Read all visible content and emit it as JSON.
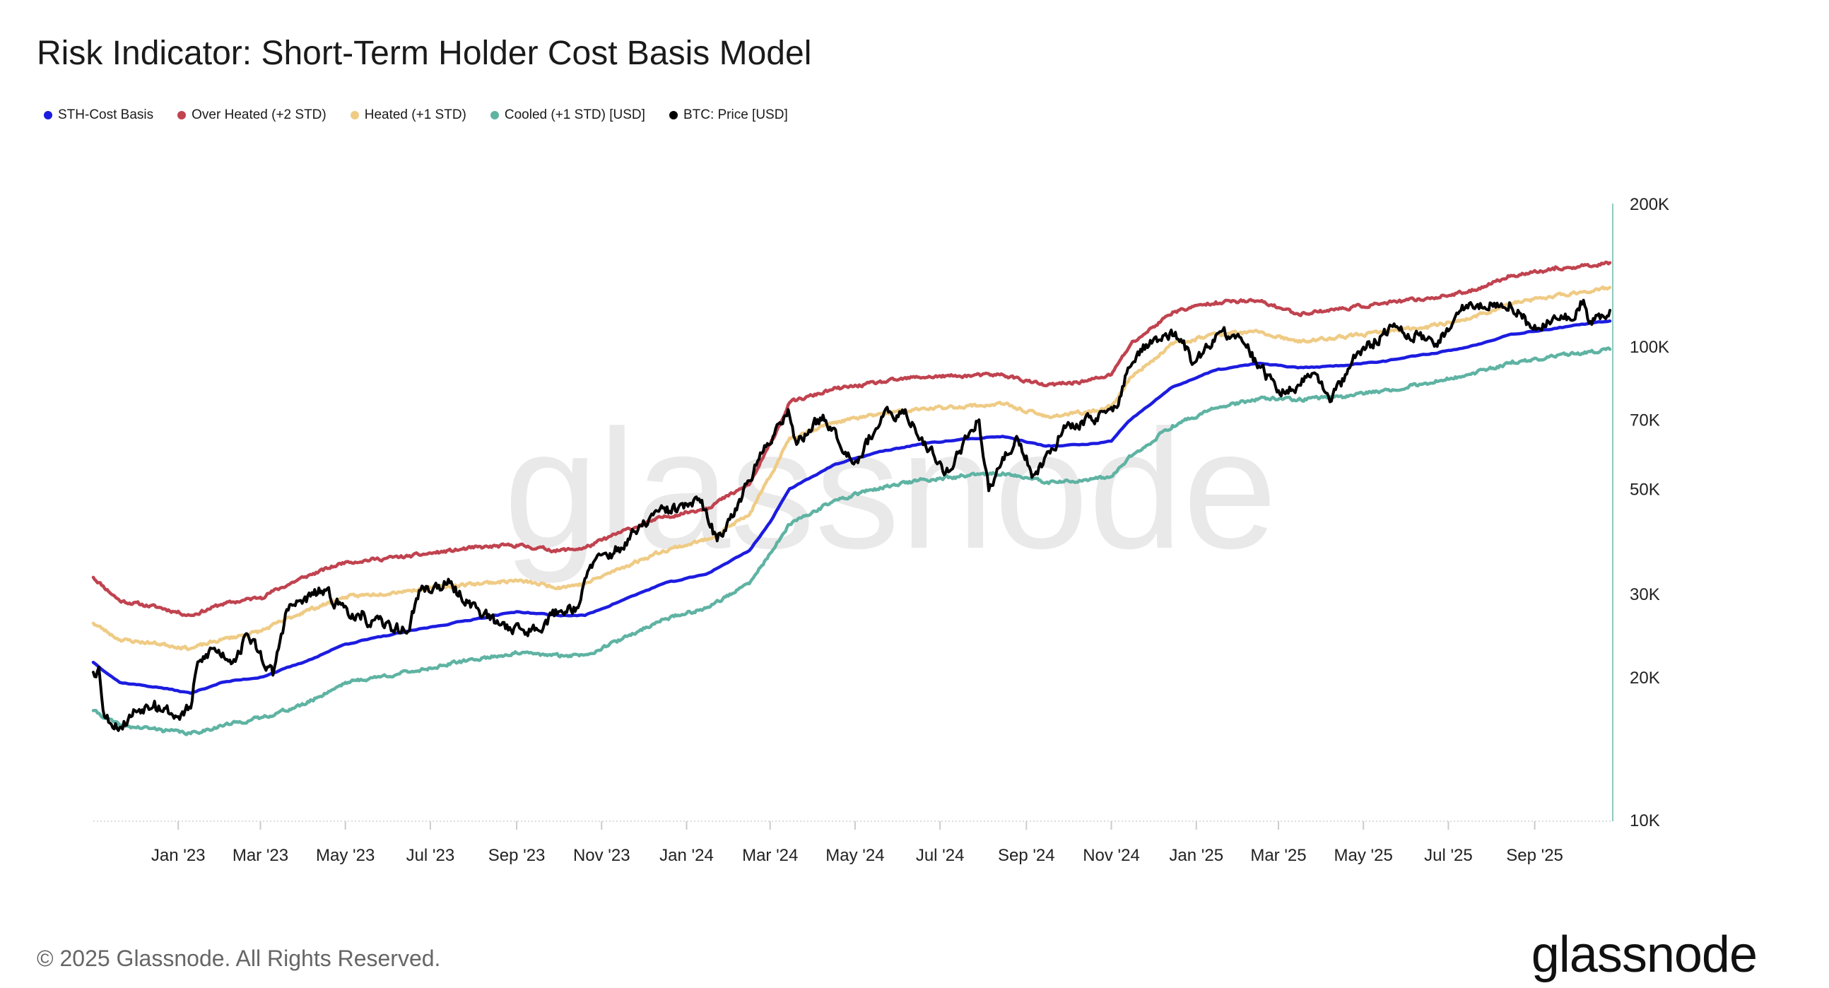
{
  "header": {
    "title": "Risk Indicator: Short-Term Holder Cost Basis Model"
  },
  "legend": [
    {
      "label": "STH-Cost Basis",
      "color": "#1c1ce0"
    },
    {
      "label": "Over Heated (+2 STD)",
      "color": "#c0434f"
    },
    {
      "label": "Heated (+1 STD)",
      "color": "#efcb85"
    },
    {
      "label": "Cooled (+1 STD) [USD]",
      "color": "#5fb3a3"
    },
    {
      "label": "BTC: Price [USD]",
      "color": "#000000"
    }
  ],
  "footer": {
    "copyright": "© 2025 Glassnode. All Rights Reserved.",
    "brand": "glassnode"
  },
  "watermark": "glassnode",
  "chart_data": {
    "type": "line",
    "x_axis": {
      "type": "date",
      "range": [
        "2022-11-01",
        "2025-10-25"
      ],
      "tick_labels": [
        "Jan '23",
        "Mar '23",
        "May '23",
        "Jul '23",
        "Sep '23",
        "Nov '23",
        "Jan '24",
        "Mar '24",
        "May '24",
        "Jul '24",
        "Sep '24",
        "Nov '24",
        "Jan '25",
        "Mar '25",
        "May '25",
        "Jul '25",
        "Sep '25"
      ],
      "tick_dates": [
        "2023-01-01",
        "2023-03-01",
        "2023-05-01",
        "2023-07-01",
        "2023-09-01",
        "2023-11-01",
        "2024-01-01",
        "2024-03-01",
        "2024-05-01",
        "2024-07-01",
        "2024-09-01",
        "2024-11-01",
        "2025-01-01",
        "2025-03-01",
        "2025-05-01",
        "2025-07-01",
        "2025-09-01"
      ]
    },
    "y_axis": {
      "scale": "log",
      "range": [
        10000,
        200000
      ],
      "position": "right",
      "ticks": [
        10000,
        20000,
        30000,
        50000,
        70000,
        100000,
        200000
      ],
      "tick_labels": [
        "10K",
        "20K",
        "30K",
        "50K",
        "70K",
        "100K",
        "200K"
      ]
    },
    "series": [
      {
        "name": "Over Heated (+2 STD)",
        "color": "#c0434f",
        "points": [
          [
            "2022-11-01",
            32500
          ],
          [
            "2022-11-20",
            29000
          ],
          [
            "2022-12-20",
            28000
          ],
          [
            "2023-01-10",
            27000
          ],
          [
            "2023-02-01",
            28500
          ],
          [
            "2023-03-01",
            29500
          ],
          [
            "2023-04-01",
            32500
          ],
          [
            "2023-05-01",
            35000
          ],
          [
            "2023-06-15",
            36000
          ],
          [
            "2023-08-01",
            37500
          ],
          [
            "2023-09-01",
            38000
          ],
          [
            "2023-10-01",
            37000
          ],
          [
            "2023-10-20",
            37500
          ],
          [
            "2023-11-15",
            40500
          ],
          [
            "2023-12-15",
            43500
          ],
          [
            "2024-01-15",
            45500
          ],
          [
            "2024-02-15",
            51000
          ],
          [
            "2024-03-01",
            62000
          ],
          [
            "2024-03-15",
            76000
          ],
          [
            "2024-04-15",
            81000
          ],
          [
            "2024-05-15",
            83500
          ],
          [
            "2024-06-15",
            86000
          ],
          [
            "2024-07-15",
            86500
          ],
          [
            "2024-08-15",
            87000
          ],
          [
            "2024-09-15",
            82500
          ],
          [
            "2024-10-15",
            84500
          ],
          [
            "2024-11-01",
            87000
          ],
          [
            "2024-11-15",
            101000
          ],
          [
            "2024-12-15",
            118000
          ],
          [
            "2025-01-15",
            124000
          ],
          [
            "2025-02-15",
            124500
          ],
          [
            "2025-03-15",
            117000
          ],
          [
            "2025-04-15",
            120000
          ],
          [
            "2025-05-15",
            123000
          ],
          [
            "2025-06-15",
            126000
          ],
          [
            "2025-07-15",
            130000
          ],
          [
            "2025-08-15",
            141000
          ],
          [
            "2025-09-15",
            145000
          ],
          [
            "2025-10-25",
            150000
          ]
        ]
      },
      {
        "name": "Heated (+1 STD)",
        "color": "#efcb85",
        "points": [
          [
            "2022-11-01",
            26000
          ],
          [
            "2022-11-20",
            24000
          ],
          [
            "2022-12-20",
            23500
          ],
          [
            "2023-01-10",
            23000
          ],
          [
            "2023-02-01",
            24000
          ],
          [
            "2023-03-01",
            25000
          ],
          [
            "2023-04-01",
            27500
          ],
          [
            "2023-05-01",
            29500
          ],
          [
            "2023-06-15",
            30500
          ],
          [
            "2023-08-01",
            31500
          ],
          [
            "2023-09-01",
            32000
          ],
          [
            "2023-10-01",
            31000
          ],
          [
            "2023-10-20",
            31500
          ],
          [
            "2023-11-15",
            34000
          ],
          [
            "2023-12-15",
            37000
          ],
          [
            "2024-01-15",
            39000
          ],
          [
            "2024-02-15",
            44000
          ],
          [
            "2024-03-01",
            53000
          ],
          [
            "2024-03-15",
            64000
          ],
          [
            "2024-04-15",
            69000
          ],
          [
            "2024-05-15",
            71500
          ],
          [
            "2024-06-15",
            73500
          ],
          [
            "2024-07-15",
            74500
          ],
          [
            "2024-08-15",
            75500
          ],
          [
            "2024-09-15",
            71000
          ],
          [
            "2024-10-15",
            72500
          ],
          [
            "2024-11-01",
            74500
          ],
          [
            "2024-11-15",
            86000
          ],
          [
            "2024-12-15",
            101000
          ],
          [
            "2025-01-15",
            106000
          ],
          [
            "2025-02-15",
            107000
          ],
          [
            "2025-03-15",
            102000
          ],
          [
            "2025-04-15",
            104500
          ],
          [
            "2025-05-15",
            107000
          ],
          [
            "2025-06-15",
            110000
          ],
          [
            "2025-07-15",
            114000
          ],
          [
            "2025-08-15",
            123000
          ],
          [
            "2025-09-15",
            127500
          ],
          [
            "2025-10-25",
            133000
          ]
        ]
      },
      {
        "name": "STH-Cost Basis",
        "color": "#1c1ce0",
        "points": [
          [
            "2022-11-01",
            21500
          ],
          [
            "2022-11-20",
            19500
          ],
          [
            "2022-12-20",
            19000
          ],
          [
            "2023-01-10",
            18500
          ],
          [
            "2023-02-01",
            19500
          ],
          [
            "2023-03-01",
            20000
          ],
          [
            "2023-04-01",
            21500
          ],
          [
            "2023-05-01",
            23500
          ],
          [
            "2023-06-15",
            25000
          ],
          [
            "2023-08-01",
            26500
          ],
          [
            "2023-09-01",
            27500
          ],
          [
            "2023-10-01",
            27000
          ],
          [
            "2023-10-20",
            27000
          ],
          [
            "2023-11-15",
            29000
          ],
          [
            "2023-12-15",
            31500
          ],
          [
            "2024-01-15",
            33000
          ],
          [
            "2024-02-15",
            37000
          ],
          [
            "2024-03-01",
            42500
          ],
          [
            "2024-03-15",
            50000
          ],
          [
            "2024-04-15",
            56000
          ],
          [
            "2024-05-15",
            59500
          ],
          [
            "2024-06-15",
            62000
          ],
          [
            "2024-07-15",
            63500
          ],
          [
            "2024-08-15",
            64500
          ],
          [
            "2024-09-15",
            61500
          ],
          [
            "2024-10-15",
            62000
          ],
          [
            "2024-11-01",
            63000
          ],
          [
            "2024-11-15",
            70000
          ],
          [
            "2024-12-15",
            82000
          ],
          [
            "2025-01-15",
            89000
          ],
          [
            "2025-02-15",
            92000
          ],
          [
            "2025-03-15",
            90000
          ],
          [
            "2025-04-15",
            91000
          ],
          [
            "2025-05-15",
            93000
          ],
          [
            "2025-06-15",
            96000
          ],
          [
            "2025-07-15",
            99500
          ],
          [
            "2025-08-15",
            106000
          ],
          [
            "2025-09-15",
            109000
          ],
          [
            "2025-10-25",
            113000
          ]
        ]
      },
      {
        "name": "Cooled (+1 STD) [USD]",
        "color": "#5fb3a3",
        "points": [
          [
            "2022-11-01",
            17000
          ],
          [
            "2022-11-20",
            15800
          ],
          [
            "2022-12-20",
            15500
          ],
          [
            "2023-01-10",
            15200
          ],
          [
            "2023-02-01",
            15800
          ],
          [
            "2023-03-01",
            16400
          ],
          [
            "2023-04-01",
            17500
          ],
          [
            "2023-05-01",
            19500
          ],
          [
            "2023-06-15",
            20500
          ],
          [
            "2023-08-01",
            21800
          ],
          [
            "2023-09-01",
            22500
          ],
          [
            "2023-10-01",
            22200
          ],
          [
            "2023-10-20",
            22300
          ],
          [
            "2023-11-15",
            24000
          ],
          [
            "2023-12-15",
            26500
          ],
          [
            "2024-01-15",
            28000
          ],
          [
            "2024-02-15",
            31500
          ],
          [
            "2024-03-01",
            36500
          ],
          [
            "2024-03-15",
            42000
          ],
          [
            "2024-04-15",
            47000
          ],
          [
            "2024-05-15",
            50000
          ],
          [
            "2024-06-15",
            52000
          ],
          [
            "2024-07-15",
            53000
          ],
          [
            "2024-08-15",
            54000
          ],
          [
            "2024-09-15",
            51500
          ],
          [
            "2024-10-15",
            52000
          ],
          [
            "2024-11-01",
            53000
          ],
          [
            "2024-11-15",
            58500
          ],
          [
            "2024-12-15",
            68000
          ],
          [
            "2025-01-15",
            74000
          ],
          [
            "2025-02-15",
            77500
          ],
          [
            "2025-03-15",
            77000
          ],
          [
            "2025-04-15",
            78500
          ],
          [
            "2025-05-15",
            80500
          ],
          [
            "2025-06-15",
            83500
          ],
          [
            "2025-07-15",
            87000
          ],
          [
            "2025-08-15",
            92000
          ],
          [
            "2025-09-15",
            95000
          ],
          [
            "2025-10-25",
            98500
          ]
        ]
      },
      {
        "name": "BTC: Price [USD]",
        "color": "#000000",
        "points": [
          [
            "2022-11-01",
            20500
          ],
          [
            "2022-11-05",
            21000
          ],
          [
            "2022-11-09",
            16500
          ],
          [
            "2022-11-21",
            15700
          ],
          [
            "2022-12-01",
            17000
          ],
          [
            "2022-12-15",
            17800
          ],
          [
            "2022-12-31",
            16500
          ],
          [
            "2023-01-10",
            17200
          ],
          [
            "2023-01-14",
            20800
          ],
          [
            "2023-01-25",
            23000
          ],
          [
            "2023-02-10",
            21800
          ],
          [
            "2023-02-20",
            24600
          ],
          [
            "2023-03-10",
            20200
          ],
          [
            "2023-03-20",
            27800
          ],
          [
            "2023-04-14",
            30400
          ],
          [
            "2023-05-12",
            26500
          ],
          [
            "2023-06-15",
            25000
          ],
          [
            "2023-06-23",
            30500
          ],
          [
            "2023-07-13",
            31400
          ],
          [
            "2023-08-17",
            26000
          ],
          [
            "2023-09-11",
            25000
          ],
          [
            "2023-10-01",
            27500
          ],
          [
            "2023-10-16",
            28500
          ],
          [
            "2023-10-24",
            34500
          ],
          [
            "2023-11-15",
            37500
          ],
          [
            "2023-12-08",
            44000
          ],
          [
            "2024-01-11",
            46800
          ],
          [
            "2024-01-23",
            38800
          ],
          [
            "2024-02-15",
            52000
          ],
          [
            "2024-03-05",
            67000
          ],
          [
            "2024-03-14",
            73500
          ],
          [
            "2024-03-20",
            62000
          ],
          [
            "2024-04-08",
            71500
          ],
          [
            "2024-05-01",
            57000
          ],
          [
            "2024-05-21",
            71000
          ],
          [
            "2024-06-07",
            71500
          ],
          [
            "2024-07-05",
            54000
          ],
          [
            "2024-07-29",
            69900
          ],
          [
            "2024-08-05",
            49500
          ],
          [
            "2024-08-25",
            64500
          ],
          [
            "2024-09-06",
            53500
          ],
          [
            "2024-09-27",
            66000
          ],
          [
            "2024-10-29",
            73000
          ],
          [
            "2024-11-06",
            75000
          ],
          [
            "2024-11-13",
            90000
          ],
          [
            "2024-11-22",
            98500
          ],
          [
            "2024-12-05",
            103000
          ],
          [
            "2024-12-17",
            107000
          ],
          [
            "2024-12-30",
            92000
          ],
          [
            "2025-01-20",
            108000
          ],
          [
            "2025-02-10",
            97000
          ],
          [
            "2025-02-28",
            80000
          ],
          [
            "2025-03-10",
            80500
          ],
          [
            "2025-03-25",
            87500
          ],
          [
            "2025-04-08",
            76500
          ],
          [
            "2025-04-25",
            94500
          ],
          [
            "2025-05-22",
            110000
          ],
          [
            "2025-06-22",
            101000
          ],
          [
            "2025-07-14",
            122000
          ],
          [
            "2025-08-14",
            123500
          ],
          [
            "2025-08-31",
            108500
          ],
          [
            "2025-09-15",
            116000
          ],
          [
            "2025-09-30",
            114000
          ],
          [
            "2025-10-06",
            125000
          ],
          [
            "2025-10-10",
            112000
          ],
          [
            "2025-10-25",
            119000
          ]
        ]
      }
    ],
    "grid": false,
    "legend_position": "top-left"
  }
}
